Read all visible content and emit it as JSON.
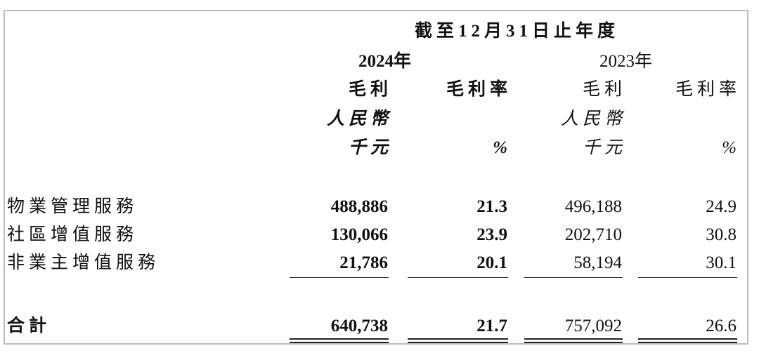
{
  "header": {
    "period": "截至12月31日止年度",
    "year_2024": "2024年",
    "year_2023": "2023年"
  },
  "columns": [
    {
      "label": "毛利",
      "currency": "人民幣",
      "unit": "千元"
    },
    {
      "label": "毛利率",
      "unit": "%"
    },
    {
      "label": "毛利",
      "currency": "人民幣",
      "unit": "千元"
    },
    {
      "label": "毛利率",
      "unit": "%"
    }
  ],
  "rows": [
    {
      "label": "物業管理服務",
      "values": [
        "488,886",
        "21.3",
        "496,188",
        "24.9"
      ]
    },
    {
      "label": "社區增值服務",
      "values": [
        "130,066",
        "23.9",
        "202,710",
        "30.8"
      ]
    },
    {
      "label": "非業主增值服務",
      "values": [
        "21,786",
        "20.1",
        "58,194",
        "30.1"
      ]
    }
  ],
  "total": {
    "label": "合計",
    "values": [
      "640,738",
      "21.7",
      "757,092",
      "26.6"
    ]
  }
}
